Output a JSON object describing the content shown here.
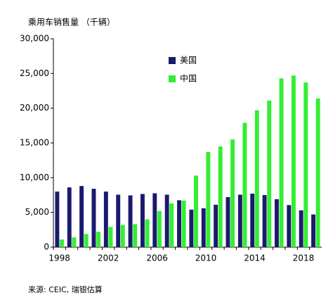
{
  "chart_data": {
    "type": "bar",
    "title": "乘用车销售量 （千辆）",
    "source": "来源: CEIC, 瑞银估算",
    "categories": [
      "1998",
      null,
      null,
      null,
      "2002",
      null,
      null,
      null,
      "2006",
      null,
      null,
      null,
      "2010",
      null,
      null,
      null,
      "2014",
      null,
      null,
      null,
      "2018",
      null
    ],
    "series": [
      {
        "name": "美国",
        "color": "#1a1a6e",
        "values": [
          8000,
          8600,
          8800,
          8400,
          8000,
          7550,
          7450,
          7650,
          7750,
          7550,
          6750,
          5400,
          5600,
          6100,
          7200,
          7550,
          7700,
          7500,
          6900,
          6050,
          5300,
          4700
        ]
      },
      {
        "name": "中国",
        "color": "#33ee33",
        "values": [
          1100,
          1400,
          1900,
          2200,
          2900,
          3200,
          3300,
          4000,
          5200,
          6300,
          6700,
          10300,
          13700,
          14500,
          15500,
          17900,
          19700,
          21100,
          24300,
          24700,
          23700,
          21400
        ]
      }
    ],
    "ylim": [
      0,
      30000
    ],
    "yticks": [
      0,
      {
        "value": 5000,
        "label": "5,000"
      },
      {
        "value": 10000,
        "label": "10,000"
      },
      {
        "value": 15000,
        "label": "15,000"
      },
      {
        "value": 20000,
        "label": "20,000"
      },
      {
        "value": 25000,
        "label": "25,000"
      },
      {
        "value": 30000,
        "label": "30,000"
      }
    ],
    "grid": false
  }
}
